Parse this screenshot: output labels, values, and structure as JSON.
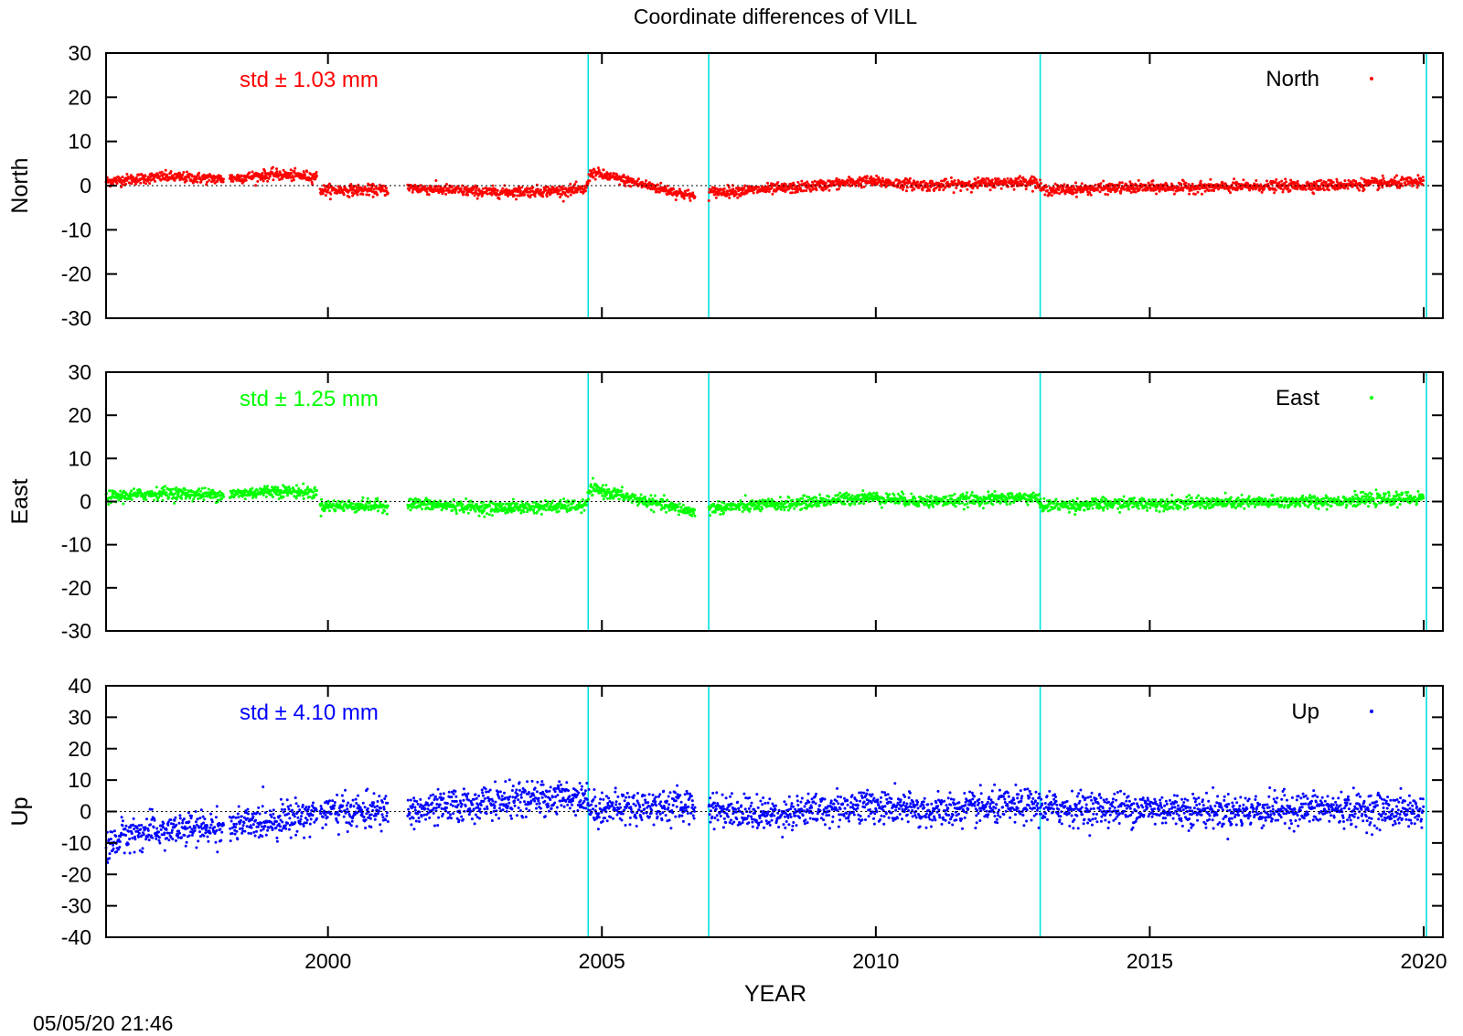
{
  "title": "Coordinate differences of VILL",
  "xlabel": "YEAR",
  "timestamp": "05/05/20 21:46",
  "chart_data": [
    {
      "type": "scatter",
      "panel": "north",
      "ylabel": "North",
      "legend": "North",
      "legend_position": "top-right",
      "annotation": "std ± 1.03 mm",
      "color": "#ff0000",
      "xlim": [
        1995.95,
        2020.35
      ],
      "ylim": [
        -30,
        30
      ],
      "yticks": [
        30,
        20,
        10,
        0,
        -10,
        -20,
        -30
      ],
      "xticks": [
        2000,
        2005,
        2010,
        2015,
        2020
      ],
      "xtick_labels": [],
      "grid": false,
      "zero_line": true,
      "vertical_markers": [
        2004.75,
        2006.95,
        2013.0,
        2020.05
      ],
      "data_gaps": [
        [
          1998.1,
          1998.2
        ],
        [
          1999.8,
          1999.85
        ],
        [
          2001.1,
          2001.45
        ],
        [
          2006.7,
          2006.95
        ]
      ],
      "trend": [
        [
          1995.95,
          1.0
        ],
        [
          1997.0,
          2.0
        ],
        [
          1998.1,
          1.5
        ],
        [
          1999.0,
          2.5
        ],
        [
          1999.8,
          2.0
        ],
        [
          1999.85,
          -1.0
        ],
        [
          2001.1,
          -1.0
        ],
        [
          2001.45,
          -0.5
        ],
        [
          2003.0,
          -1.5
        ],
        [
          2004.7,
          -1.0
        ],
        [
          2004.8,
          3.0
        ],
        [
          2006.7,
          -2.5
        ],
        [
          2007.0,
          -1.5
        ],
        [
          2008.5,
          -0.5
        ],
        [
          2009.8,
          1.0
        ],
        [
          2011.0,
          0.0
        ],
        [
          2012.9,
          1.0
        ],
        [
          2013.05,
          -1.0
        ],
        [
          2014.5,
          -0.5
        ],
        [
          2016.5,
          -0.3
        ],
        [
          2018.0,
          0.0
        ],
        [
          2020.0,
          0.8
        ]
      ],
      "scatter_sd": 0.6
    },
    {
      "type": "scatter",
      "panel": "east",
      "ylabel": "East",
      "legend": "East",
      "legend_position": "top-right",
      "annotation": "std ± 1.25 mm",
      "color": "#00ff00",
      "xlim": [
        1995.95,
        2020.35
      ],
      "ylim": [
        -30,
        30
      ],
      "yticks": [
        30,
        20,
        10,
        0,
        -10,
        -20,
        -30
      ],
      "xticks": [
        2000,
        2005,
        2010,
        2015,
        2020
      ],
      "xtick_labels": [],
      "grid": false,
      "zero_line": true,
      "vertical_markers": [
        2004.75,
        2006.95,
        2013.0,
        2020.05
      ],
      "data_gaps": [
        [
          1998.1,
          1998.2
        ],
        [
          1999.8,
          1999.85
        ],
        [
          2001.1,
          2001.45
        ],
        [
          2006.7,
          2006.95
        ]
      ],
      "trend": [
        [
          1995.95,
          1.0
        ],
        [
          1997.0,
          2.0
        ],
        [
          1998.1,
          1.5
        ],
        [
          1999.0,
          2.5
        ],
        [
          1999.8,
          2.0
        ],
        [
          1999.85,
          -1.0
        ],
        [
          2001.1,
          -1.0
        ],
        [
          2001.45,
          -0.5
        ],
        [
          2003.0,
          -1.5
        ],
        [
          2004.7,
          -1.0
        ],
        [
          2004.8,
          3.0
        ],
        [
          2006.7,
          -2.5
        ],
        [
          2007.0,
          -1.5
        ],
        [
          2008.5,
          -0.5
        ],
        [
          2009.8,
          1.0
        ],
        [
          2011.0,
          0.0
        ],
        [
          2012.9,
          1.0
        ],
        [
          2013.05,
          -1.0
        ],
        [
          2014.5,
          -0.5
        ],
        [
          2016.5,
          -0.3
        ],
        [
          2018.0,
          0.0
        ],
        [
          2020.0,
          0.8
        ]
      ],
      "scatter_sd": 0.7
    },
    {
      "type": "scatter",
      "panel": "up",
      "ylabel": "Up",
      "legend": "Up",
      "legend_position": "top-right",
      "annotation": "std ± 4.10 mm",
      "color": "#0000ff",
      "xlim": [
        1995.95,
        2020.35
      ],
      "ylim": [
        -40,
        40
      ],
      "yticks": [
        40,
        30,
        20,
        10,
        0,
        -10,
        -20,
        -30,
        -40
      ],
      "xticks": [
        2000,
        2005,
        2010,
        2015,
        2020
      ],
      "xtick_labels": [
        "2000",
        "2005",
        "2010",
        "2015",
        "2020"
      ],
      "grid": false,
      "zero_line": true,
      "vertical_markers": [
        2004.75,
        2006.95,
        2013.0,
        2020.05
      ],
      "data_gaps": [
        [
          1998.1,
          1998.2
        ],
        [
          1999.8,
          1999.85
        ],
        [
          2001.1,
          2001.45
        ],
        [
          2006.7,
          2006.95
        ]
      ],
      "trend": [
        [
          1995.95,
          -12.0
        ],
        [
          1996.3,
          -7.0
        ],
        [
          1998.0,
          -5.0
        ],
        [
          1998.2,
          -5.0
        ],
        [
          2000.0,
          0.0
        ],
        [
          2001.1,
          0.0
        ],
        [
          2001.45,
          0.0
        ],
        [
          2003.0,
          3.0
        ],
        [
          2004.7,
          5.0
        ],
        [
          2004.8,
          1.0
        ],
        [
          2006.7,
          2.0
        ],
        [
          2007.0,
          1.0
        ],
        [
          2008.0,
          -1.0
        ],
        [
          2009.8,
          2.0
        ],
        [
          2011.0,
          0.0
        ],
        [
          2012.9,
          2.0
        ],
        [
          2013.05,
          1.0
        ],
        [
          2015.0,
          1.0
        ],
        [
          2016.5,
          0.0
        ],
        [
          2018.0,
          1.0
        ],
        [
          2020.0,
          0.0
        ]
      ],
      "scatter_sd": 2.6
    }
  ]
}
